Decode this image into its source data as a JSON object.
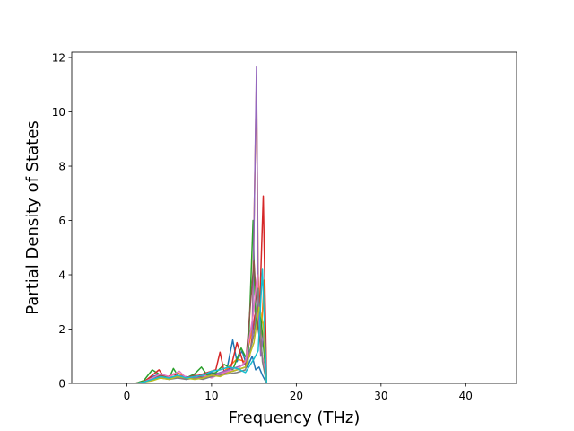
{
  "chart_data": {
    "type": "line",
    "title": "",
    "xlabel": "Frequency (THz)",
    "ylabel": "Partial Density of States",
    "xlim": [
      -6.5,
      46
    ],
    "ylim": [
      0,
      12.2
    ],
    "xticks": [
      0,
      10,
      20,
      30,
      40
    ],
    "yticks": [
      0,
      2,
      4,
      6,
      8,
      10,
      12
    ],
    "legend": "none",
    "grid": false,
    "colors": [
      "#1f77b4",
      "#ff7f0e",
      "#2ca02c",
      "#d62728",
      "#9467bd",
      "#8c564b",
      "#e377c2",
      "#7f7f7f",
      "#bcbd22",
      "#17becf"
    ],
    "series": [
      {
        "color": "#1f77b4",
        "x": [
          -4.2,
          1.0,
          2.0,
          3.0,
          4.0,
          5.0,
          6.0,
          7.0,
          8.0,
          9.0,
          10.0,
          11.0,
          11.8,
          12.5,
          13.0,
          13.6,
          14.2,
          14.8,
          15.2,
          15.6,
          16.0,
          16.5,
          43.5
        ],
        "y": [
          0,
          0,
          0.05,
          0.25,
          0.35,
          0.2,
          0.3,
          0.15,
          0.25,
          0.3,
          0.4,
          0.35,
          0.5,
          1.6,
          0.8,
          1.2,
          0.6,
          1.0,
          0.5,
          0.6,
          0.3,
          0,
          0
        ]
      },
      {
        "color": "#ff7f0e",
        "x": [
          -4.2,
          1.0,
          2.0,
          3.0,
          4.0,
          5.0,
          6.0,
          7.0,
          8.0,
          9.0,
          10.0,
          11.0,
          12.0,
          13.0,
          14.0,
          14.8,
          15.3,
          15.5,
          15.8,
          16.2,
          16.5,
          43.5
        ],
        "y": [
          0,
          0,
          0.1,
          0.2,
          0.3,
          0.25,
          0.4,
          0.2,
          0.3,
          0.25,
          0.35,
          0.3,
          0.6,
          0.9,
          0.8,
          2.0,
          11.2,
          4.0,
          1.5,
          3.8,
          0,
          0
        ]
      },
      {
        "color": "#2ca02c",
        "x": [
          -4.2,
          1.0,
          2.0,
          3.0,
          3.5,
          4.0,
          5.0,
          5.5,
          6.0,
          7.0,
          8.0,
          8.8,
          9.5,
          10.5,
          11.5,
          12.5,
          13.5,
          14.3,
          14.9,
          15.2,
          15.6,
          16.0,
          16.5,
          43.5
        ],
        "y": [
          0,
          0,
          0.1,
          0.5,
          0.4,
          0.3,
          0.2,
          0.55,
          0.3,
          0.2,
          0.35,
          0.6,
          0.3,
          0.4,
          0.7,
          0.5,
          1.3,
          0.8,
          6.0,
          2.0,
          3.2,
          1.8,
          0,
          0
        ]
      },
      {
        "color": "#d62728",
        "x": [
          -4.2,
          1.0,
          2.0,
          3.0,
          3.8,
          4.5,
          5.5,
          6.5,
          7.5,
          8.5,
          9.5,
          10.5,
          11.0,
          11.5,
          12.3,
          13.0,
          13.8,
          14.5,
          15.1,
          15.7,
          16.1,
          16.5,
          43.5
        ],
        "y": [
          0,
          0,
          0.05,
          0.3,
          0.5,
          0.2,
          0.35,
          0.2,
          0.25,
          0.3,
          0.4,
          0.5,
          1.15,
          0.4,
          0.6,
          1.5,
          0.7,
          1.0,
          2.5,
          3.0,
          6.9,
          0,
          0
        ]
      },
      {
        "color": "#9467bd",
        "x": [
          -4.2,
          1.0,
          2.0,
          3.0,
          4.0,
          5.0,
          6.0,
          7.0,
          8.0,
          9.0,
          10.0,
          11.0,
          12.0,
          13.0,
          14.0,
          14.8,
          15.3,
          15.5,
          15.8,
          16.2,
          16.5,
          43.5
        ],
        "y": [
          0,
          0,
          0.05,
          0.15,
          0.25,
          0.2,
          0.3,
          0.25,
          0.2,
          0.25,
          0.3,
          0.4,
          0.5,
          0.6,
          0.7,
          1.5,
          11.65,
          3.0,
          1.0,
          2.0,
          0,
          0
        ]
      },
      {
        "color": "#8c564b",
        "x": [
          -4.2,
          1.0,
          2.0,
          3.0,
          4.0,
          5.0,
          6.0,
          7.0,
          8.0,
          9.0,
          10.0,
          11.0,
          12.0,
          13.0,
          14.0,
          15.0,
          15.5,
          16.0,
          16.5,
          43.5
        ],
        "y": [
          0,
          0,
          0.05,
          0.2,
          0.3,
          0.15,
          0.25,
          0.2,
          0.3,
          0.2,
          0.25,
          0.35,
          0.4,
          0.5,
          0.6,
          4.5,
          2.0,
          1.0,
          0,
          0
        ]
      },
      {
        "color": "#e377c2",
        "x": [
          -4.2,
          1.0,
          2.0,
          3.0,
          4.0,
          5.0,
          6.2,
          7.0,
          8.0,
          9.0,
          10.0,
          11.0,
          12.0,
          13.0,
          14.0,
          14.9,
          15.4,
          15.9,
          16.5,
          43.5
        ],
        "y": [
          0,
          0,
          0.05,
          0.2,
          0.35,
          0.25,
          0.45,
          0.2,
          0.25,
          0.3,
          0.2,
          0.35,
          0.45,
          0.5,
          0.8,
          2.5,
          4.0,
          1.2,
          0,
          0
        ]
      },
      {
        "color": "#7f7f7f",
        "x": [
          -4.2,
          1.0,
          2.0,
          3.0,
          4.0,
          5.0,
          6.0,
          7.0,
          8.0,
          9.0,
          10.0,
          11.0,
          12.0,
          13.0,
          14.0,
          15.0,
          15.5,
          16.0,
          16.5,
          43.5
        ],
        "y": [
          0,
          0,
          0.05,
          0.15,
          0.2,
          0.15,
          0.2,
          0.15,
          0.2,
          0.15,
          0.25,
          0.3,
          0.35,
          0.4,
          0.5,
          1.8,
          3.5,
          0.8,
          0,
          0
        ]
      },
      {
        "color": "#bcbd22",
        "x": [
          -4.2,
          1.0,
          2.0,
          3.0,
          4.0,
          5.0,
          6.0,
          7.0,
          8.0,
          9.0,
          10.0,
          11.0,
          12.0,
          13.0,
          14.0,
          15.0,
          15.6,
          16.1,
          16.5,
          43.5
        ],
        "y": [
          0,
          0,
          0.05,
          0.1,
          0.2,
          0.15,
          0.25,
          0.2,
          0.15,
          0.2,
          0.3,
          0.25,
          0.4,
          0.5,
          0.6,
          1.5,
          2.8,
          2.2,
          0,
          0
        ]
      },
      {
        "color": "#17becf",
        "x": [
          -4.2,
          1.0,
          2.0,
          3.0,
          4.0,
          5.0,
          6.0,
          7.0,
          8.0,
          9.0,
          10.0,
          11.0,
          12.0,
          13.0,
          14.0,
          15.0,
          15.5,
          16.0,
          16.5,
          43.5
        ],
        "y": [
          0,
          0,
          0.05,
          0.15,
          0.25,
          0.2,
          0.3,
          0.2,
          0.25,
          0.3,
          0.45,
          0.5,
          0.6,
          0.55,
          0.4,
          0.9,
          1.2,
          4.2,
          0,
          0
        ]
      }
    ]
  }
}
